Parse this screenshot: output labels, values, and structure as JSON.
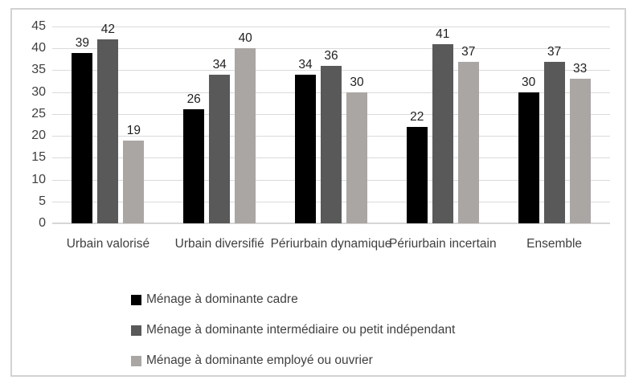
{
  "figure": {
    "background": "#ffffff",
    "border_color": "#d2d2d2"
  },
  "chart_data": {
    "type": "bar",
    "title": "",
    "categories": [
      "Urbain valorisé",
      "Urbain diversifié",
      "Périurbain dynamique",
      "Périurbain incertain",
      "Ensemble"
    ],
    "series": [
      {
        "name": "Ménage à dominante cadre",
        "color": "#000000",
        "values": [
          39,
          26,
          34,
          22,
          30
        ]
      },
      {
        "name": "Ménage à dominante intermédiaire ou petit indépendant",
        "color": "#595959",
        "values": [
          42,
          34,
          36,
          41,
          37
        ]
      },
      {
        "name": "Ménage à dominante employé ou ouvrier",
        "color": "#a9a6a4",
        "values": [
          19,
          40,
          30,
          37,
          33
        ]
      }
    ],
    "xlabel": "",
    "ylabel": "",
    "y_axis": {
      "min": 0,
      "max": 45,
      "step": 5,
      "ticks": [
        0,
        5,
        10,
        15,
        20,
        25,
        30,
        35,
        40,
        45
      ]
    },
    "grid": true,
    "data_labels": true,
    "legend_position": "bottom-left",
    "colors": {
      "gridline": "#dadada",
      "axis_line": "#d6d6d6",
      "text": "#3f3f3f",
      "data_label": "#1f1f1f"
    }
  }
}
